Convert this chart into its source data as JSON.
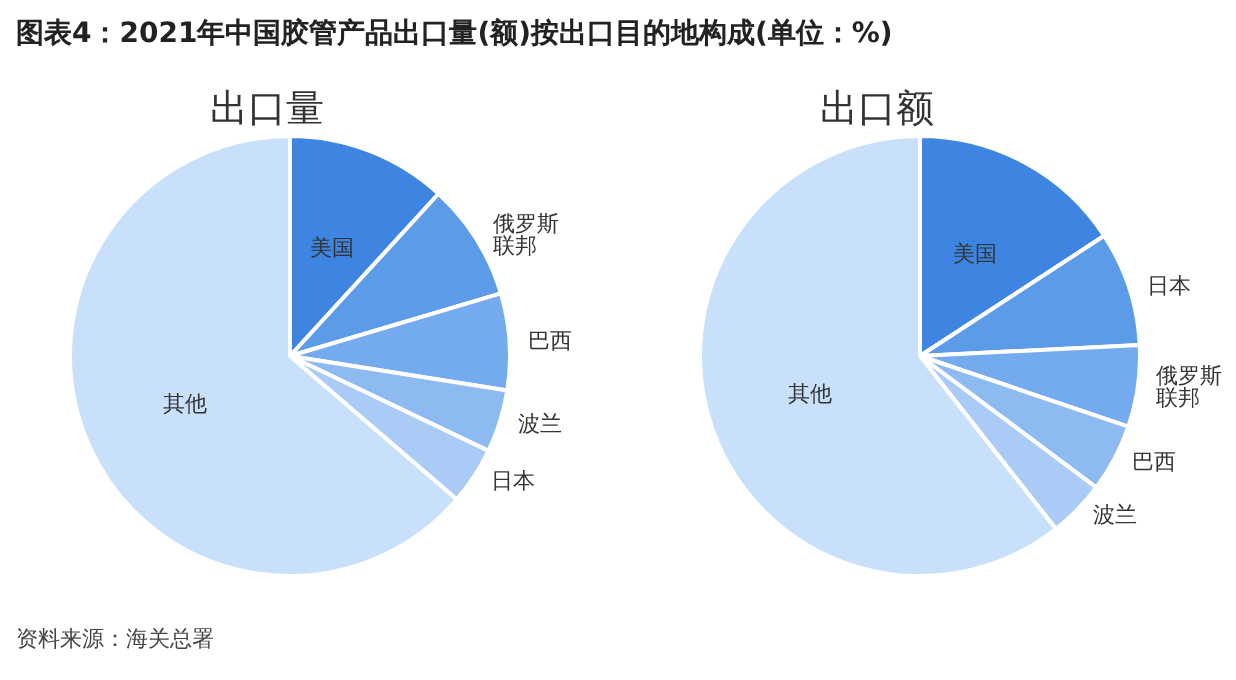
{
  "chart_data": [
    {
      "type": "pie",
      "title": "图表4：2021年中国胶管产品出口量(额)按出口目的地构成(单位：%)",
      "subtitle": "出口量",
      "annotations": [
        "资料来源：海关总署"
      ],
      "categories": [
        "美国",
        "俄罗斯联邦",
        "巴西",
        "波兰",
        "日本",
        "其他"
      ],
      "values": [
        11.8,
        8.6,
        7.1,
        4.6,
        4.2,
        63.7
      ],
      "colors": [
        "#3d85e0",
        "#5b9be8",
        "#74aaee",
        "#8dbaf0",
        "#a9cbf5",
        "#c9e0fb"
      ],
      "legend": false
    },
    {
      "type": "pie",
      "subtitle": "出口额",
      "categories": [
        "美国",
        "日本",
        "俄罗斯联邦",
        "巴西",
        "波兰",
        "其他"
      ],
      "values": [
        15.8,
        8.4,
        6.0,
        5.0,
        4.2,
        60.6
      ],
      "colors": [
        "#3d85e0",
        "#5b9be8",
        "#74aaee",
        "#8dbaf0",
        "#a9cbf5",
        "#c9e0fb"
      ],
      "legend": false
    }
  ]
}
